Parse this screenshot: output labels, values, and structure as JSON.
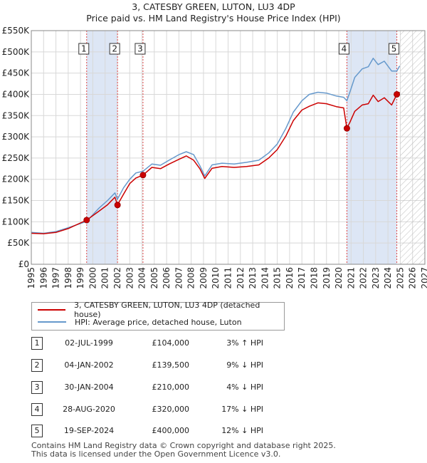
{
  "title": "3, CATESBY GREEN, LUTON, LU3 4DP",
  "subtitle": "Price paid vs. HM Land Registry's House Price Index (HPI)",
  "colors": {
    "hpi": "#6699cc",
    "property": "#cc0000",
    "sale_line": "#dd4444",
    "shade": "#dde6f5",
    "marker_border": "#333333"
  },
  "chart_data": {
    "type": "line",
    "title": "3, CATESBY GREEN, LUTON, LU3 4DP",
    "xlabel": "",
    "ylabel": "",
    "xlim": [
      1995,
      2027
    ],
    "ylim": [
      0,
      550000
    ],
    "x_ticks": [
      "1995",
      "1996",
      "1997",
      "1998",
      "1999",
      "2000",
      "2001",
      "2002",
      "2003",
      "2004",
      "2005",
      "2006",
      "2007",
      "2008",
      "2009",
      "2010",
      "2011",
      "2012",
      "2013",
      "2014",
      "2015",
      "2016",
      "2017",
      "2018",
      "2019",
      "2020",
      "2021",
      "2022",
      "2023",
      "2024",
      "2025",
      "2026",
      "2027"
    ],
    "y_ticks": [
      {
        "value": 0,
        "label": "£0"
      },
      {
        "value": 50000,
        "label": "£50K"
      },
      {
        "value": 100000,
        "label": "£100K"
      },
      {
        "value": 150000,
        "label": "£150K"
      },
      {
        "value": 200000,
        "label": "£200K"
      },
      {
        "value": 250000,
        "label": "£250K"
      },
      {
        "value": 300000,
        "label": "£300K"
      },
      {
        "value": 350000,
        "label": "£350K"
      },
      {
        "value": 400000,
        "label": "£400K"
      },
      {
        "value": 450000,
        "label": "£450K"
      },
      {
        "value": 500000,
        "label": "£500K"
      },
      {
        "value": 550000,
        "label": "£550K"
      }
    ],
    "hatched_region_from": 2025.0,
    "sale_shade_spans": [
      [
        1999.5,
        2002.0
      ],
      [
        2020.65,
        2024.72
      ]
    ],
    "series": [
      {
        "name": "3, CATESBY GREEN, LUTON, LU3 4DP (detached house)",
        "color": "#cc0000",
        "x": [
          1995,
          1996,
          1997,
          1998,
          1999.5,
          2000.5,
          2001.2,
          2001.8,
          2002.0,
          2002.5,
          2003.0,
          2003.5,
          2004.08,
          2004.8,
          2005.5,
          2006.2,
          2007.0,
          2007.6,
          2008.2,
          2008.7,
          2009.1,
          2009.7,
          2010.5,
          2011.5,
          2012.5,
          2013.5,
          2014.3,
          2015.0,
          2015.7,
          2016.3,
          2017.0,
          2017.6,
          2018.3,
          2019.0,
          2019.8,
          2020.4,
          2020.66,
          2020.9,
          2021.3,
          2021.9,
          2022.4,
          2022.8,
          2023.2,
          2023.7,
          2024.3,
          2024.72,
          2024.95
        ],
        "y": [
          73000,
          72000,
          75000,
          84000,
          104000,
          125000,
          140000,
          158000,
          139500,
          165000,
          190000,
          203000,
          210000,
          228000,
          225000,
          236000,
          247000,
          255000,
          245000,
          225000,
          202000,
          226000,
          230000,
          228000,
          230000,
          234000,
          250000,
          270000,
          302000,
          338000,
          363000,
          372000,
          380000,
          378000,
          371000,
          368000,
          320000,
          334000,
          360000,
          375000,
          378000,
          398000,
          383000,
          392000,
          375000,
          400000,
          405000
        ]
      },
      {
        "name": "HPI: Average price, detached house, Luton",
        "color": "#6699cc",
        "x": [
          1995,
          1996,
          1997,
          1998,
          1999.5,
          2000.5,
          2001.2,
          2001.8,
          2002.0,
          2002.5,
          2003.0,
          2003.5,
          2004.08,
          2004.8,
          2005.5,
          2006.2,
          2007.0,
          2007.6,
          2008.2,
          2008.7,
          2009.1,
          2009.7,
          2010.5,
          2011.5,
          2012.5,
          2013.5,
          2014.3,
          2015.0,
          2015.7,
          2016.3,
          2017.0,
          2017.6,
          2018.3,
          2019.0,
          2019.8,
          2020.4,
          2020.66,
          2020.9,
          2021.3,
          2021.9,
          2022.4,
          2022.8,
          2023.2,
          2023.7,
          2024.3,
          2024.72,
          2024.95
        ],
        "y": [
          75000,
          73000,
          77000,
          86000,
          101000,
          132000,
          150000,
          168000,
          153000,
          180000,
          200000,
          215000,
          219000,
          236000,
          233000,
          245000,
          258000,
          265000,
          258000,
          232000,
          208000,
          234000,
          238000,
          236000,
          240000,
          245000,
          262000,
          283000,
          320000,
          358000,
          385000,
          400000,
          405000,
          403000,
          396000,
          393000,
          385000,
          405000,
          440000,
          460000,
          465000,
          485000,
          470000,
          478000,
          455000,
          455000,
          467000
        ]
      }
    ],
    "sales": [
      {
        "label": "1",
        "x": 1999.5,
        "price": 104000
      },
      {
        "label": "2",
        "x": 2002.01,
        "price": 139500
      },
      {
        "label": "3",
        "x": 2004.08,
        "price": 210000
      },
      {
        "label": "4",
        "x": 2020.66,
        "price": 320000
      },
      {
        "label": "5",
        "x": 2024.72,
        "price": 400000
      }
    ]
  },
  "legend": {
    "items": [
      {
        "label": "3, CATESBY GREEN, LUTON, LU3 4DP (detached house)"
      },
      {
        "label": "HPI: Average price, detached house, Luton"
      }
    ]
  },
  "table": {
    "rows": [
      {
        "num": "1",
        "date": "02-JUL-1999",
        "price": "£104,000",
        "hpi": "3% ↑ HPI"
      },
      {
        "num": "2",
        "date": "04-JAN-2002",
        "price": "£139,500",
        "hpi": "9% ↓ HPI"
      },
      {
        "num": "3",
        "date": "30-JAN-2004",
        "price": "£210,000",
        "hpi": "4% ↓ HPI"
      },
      {
        "num": "4",
        "date": "28-AUG-2020",
        "price": "£320,000",
        "hpi": "17% ↓ HPI"
      },
      {
        "num": "5",
        "date": "19-SEP-2024",
        "price": "£400,000",
        "hpi": "12% ↓ HPI"
      }
    ]
  },
  "footer": {
    "line1": "Contains HM Land Registry data © Crown copyright and database right 2025.",
    "line2": "This data is licensed under the Open Government Licence v3.0."
  }
}
